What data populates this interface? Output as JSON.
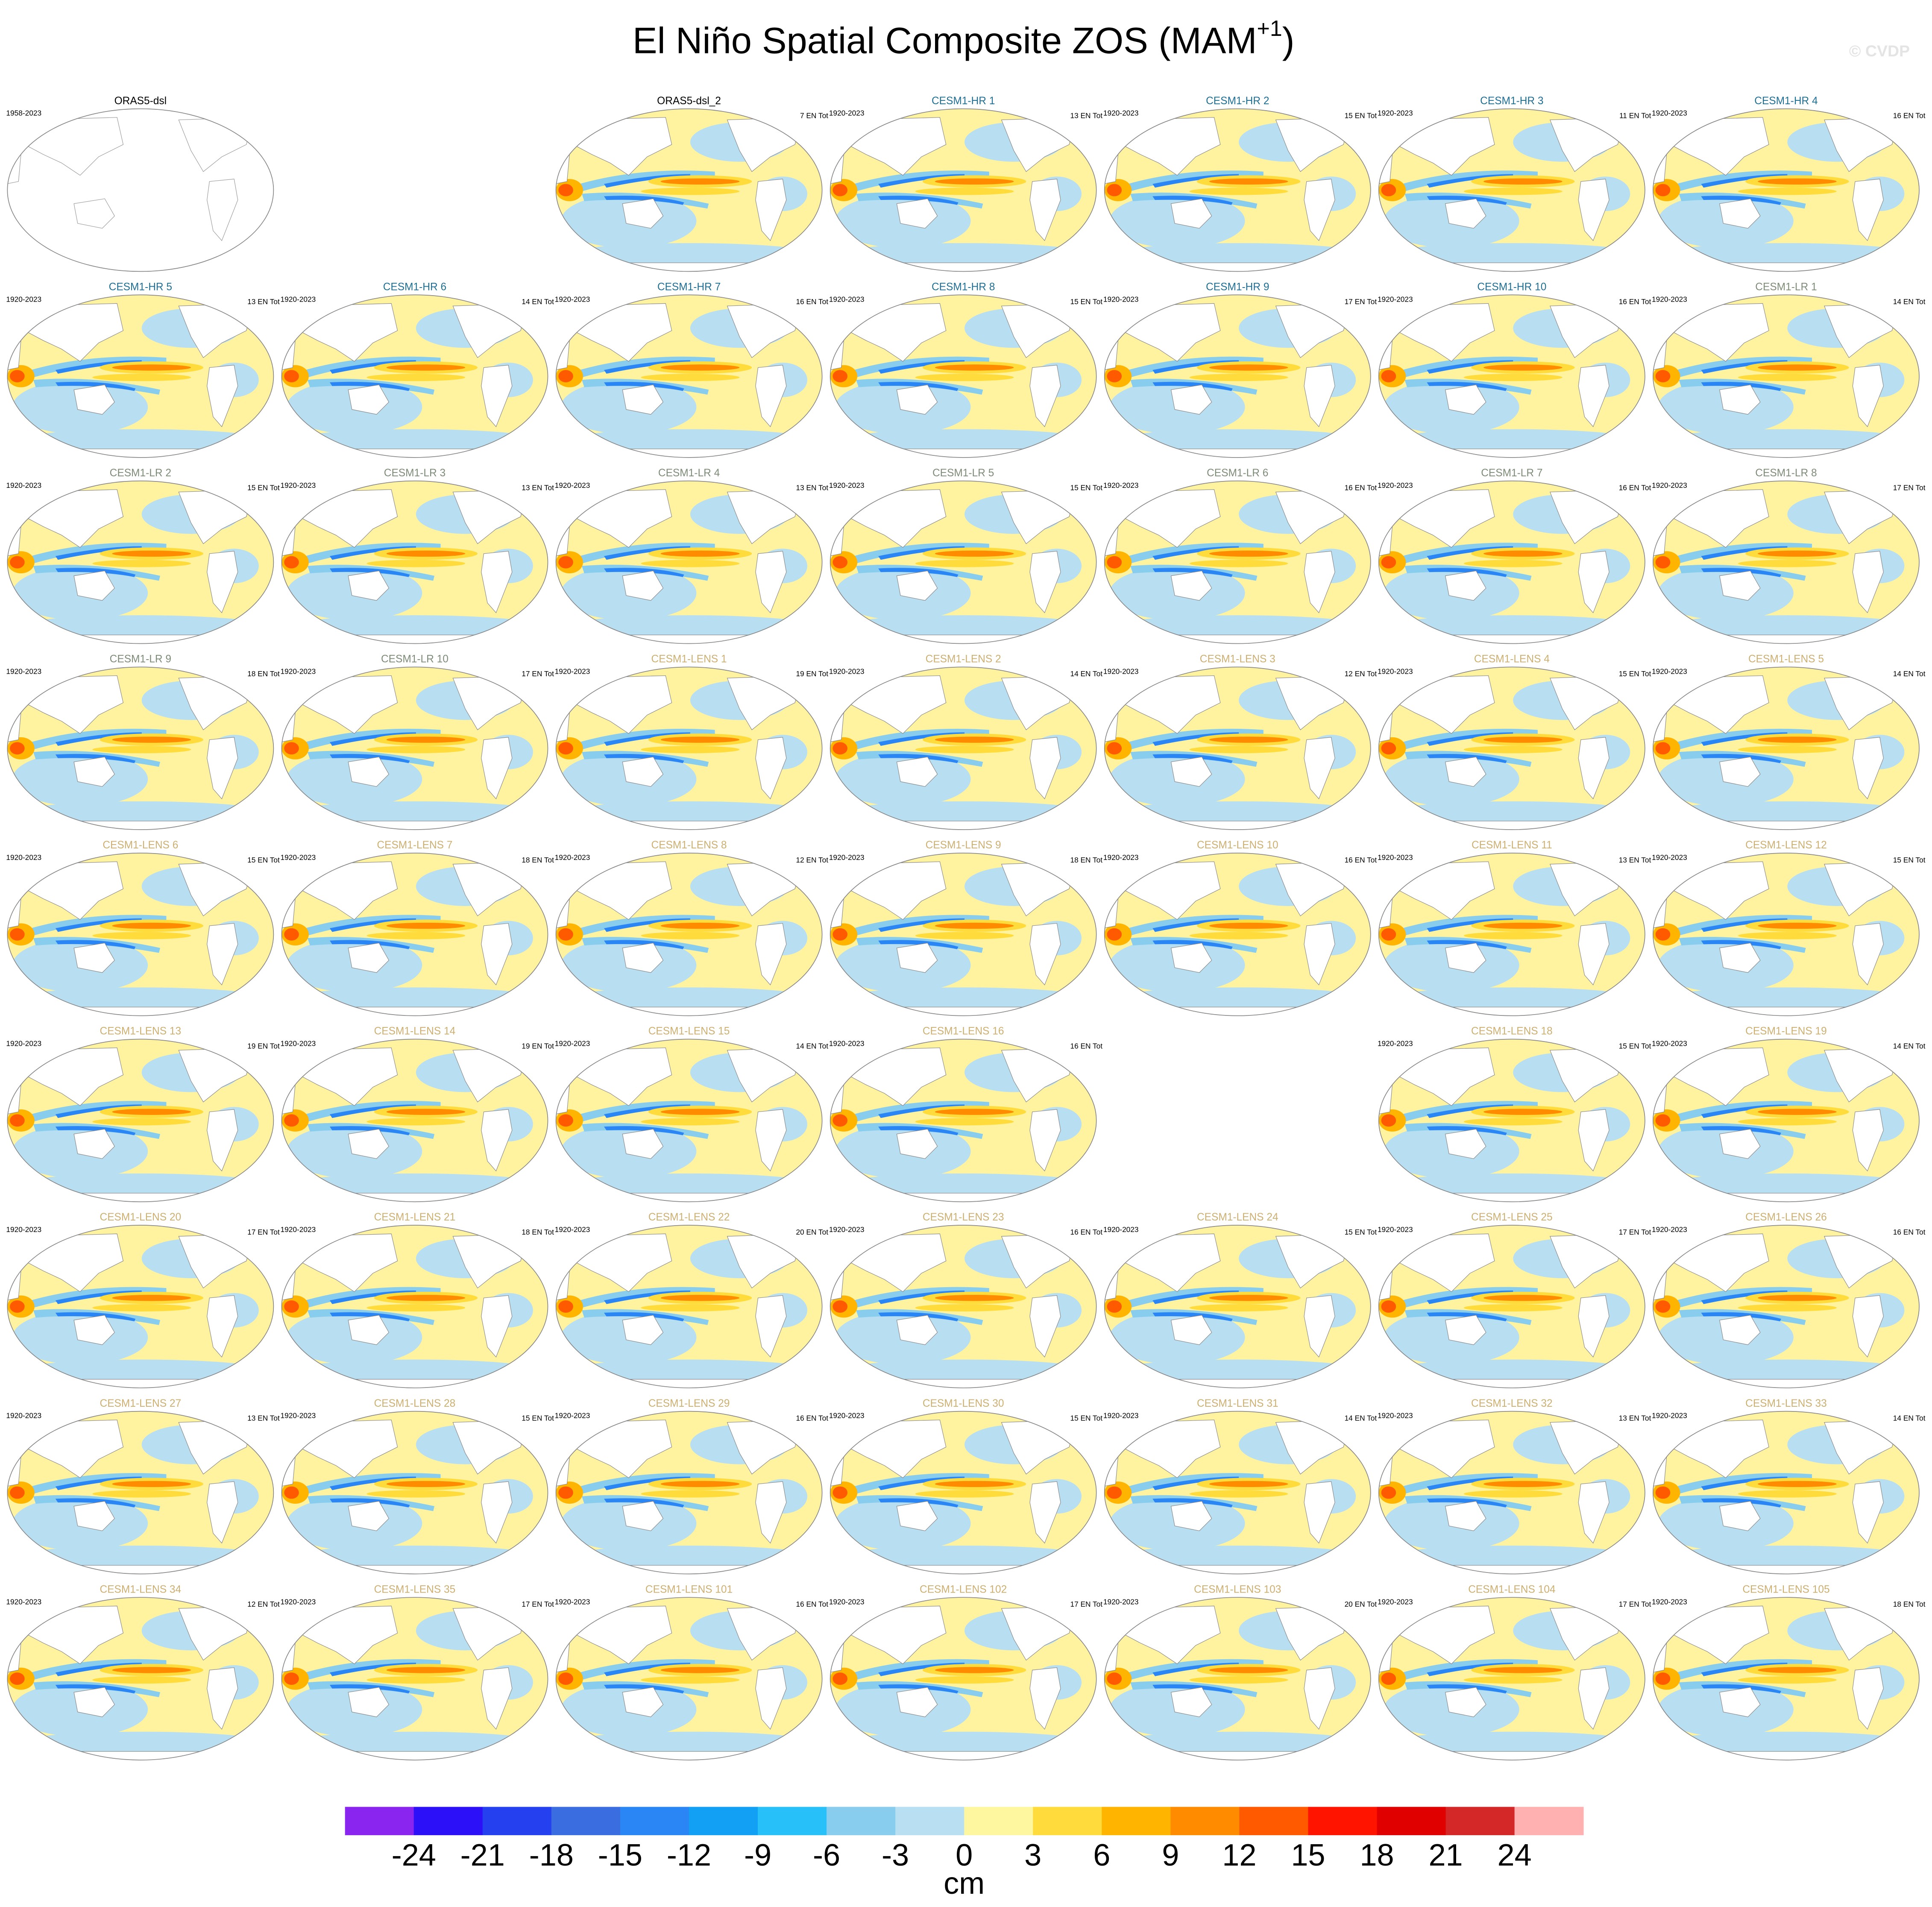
{
  "title": {
    "main": "El Niño Spatial Composite ZOS (MAM",
    "sup": "+1",
    "end": ")"
  },
  "watermark": "© CVDP",
  "group_colors": {
    "obs": "#000000",
    "hr": "#1f6e93",
    "lr": "#7d8b77",
    "lens": "#cdb071"
  },
  "rows": [
    [
      {
        "title": "ORAS5-dsl",
        "group": "obs",
        "period": "1958-2023",
        "filled": false
      },
      null,
      {
        "title": "ORAS5-dsl_2",
        "group": "obs",
        "count": "7 EN Tot",
        "filled": true
      },
      {
        "title": "CESM1-HR 1",
        "group": "hr",
        "period": "1920-2023",
        "count": "13 EN Tot",
        "filled": true
      },
      {
        "title": "CESM1-HR 2",
        "group": "hr",
        "period": "1920-2023",
        "count": "15 EN Tot",
        "filled": true
      },
      {
        "title": "CESM1-HR 3",
        "group": "hr",
        "period": "1920-2023",
        "count": "11 EN Tot",
        "filled": true
      },
      {
        "title": "CESM1-HR 4",
        "group": "hr",
        "period": "1920-2023",
        "count": "16 EN Tot",
        "filled": true
      }
    ],
    [
      {
        "title": "CESM1-HR 5",
        "group": "hr",
        "period": "1920-2023",
        "count": "13 EN Tot",
        "filled": true
      },
      {
        "title": "CESM1-HR 6",
        "group": "hr",
        "period": "1920-2023",
        "count": "14 EN Tot",
        "filled": true
      },
      {
        "title": "CESM1-HR 7",
        "group": "hr",
        "period": "1920-2023",
        "count": "16 EN Tot",
        "filled": true
      },
      {
        "title": "CESM1-HR 8",
        "group": "hr",
        "period": "1920-2023",
        "count": "15 EN Tot",
        "filled": true
      },
      {
        "title": "CESM1-HR 9",
        "group": "hr",
        "period": "1920-2023",
        "count": "17 EN Tot",
        "filled": true
      },
      {
        "title": "CESM1-HR 10",
        "group": "hr",
        "period": "1920-2023",
        "count": "16 EN Tot",
        "filled": true
      },
      {
        "title": "CESM1-LR 1",
        "group": "lr",
        "period": "1920-2023",
        "count": "14 EN Tot",
        "filled": true
      }
    ],
    [
      {
        "title": "CESM1-LR 2",
        "group": "lr",
        "period": "1920-2023",
        "count": "15 EN Tot",
        "filled": true
      },
      {
        "title": "CESM1-LR 3",
        "group": "lr",
        "period": "1920-2023",
        "count": "13 EN Tot",
        "filled": true
      },
      {
        "title": "CESM1-LR 4",
        "group": "lr",
        "period": "1920-2023",
        "count": "13 EN Tot",
        "filled": true
      },
      {
        "title": "CESM1-LR 5",
        "group": "lr",
        "period": "1920-2023",
        "count": "15 EN Tot",
        "filled": true
      },
      {
        "title": "CESM1-LR 6",
        "group": "lr",
        "period": "1920-2023",
        "count": "16 EN Tot",
        "filled": true
      },
      {
        "title": "CESM1-LR 7",
        "group": "lr",
        "period": "1920-2023",
        "count": "16 EN Tot",
        "filled": true
      },
      {
        "title": "CESM1-LR 8",
        "group": "lr",
        "period": "1920-2023",
        "count": "17 EN Tot",
        "filled": true
      }
    ],
    [
      {
        "title": "CESM1-LR 9",
        "group": "lr",
        "period": "1920-2023",
        "count": "18 EN Tot",
        "filled": true
      },
      {
        "title": "CESM1-LR 10",
        "group": "lr",
        "period": "1920-2023",
        "count": "17 EN Tot",
        "filled": true
      },
      {
        "title": "CESM1-LENS 1",
        "group": "lens",
        "period": "1920-2023",
        "count": "19 EN Tot",
        "filled": true
      },
      {
        "title": "CESM1-LENS 2",
        "group": "lens",
        "period": "1920-2023",
        "count": "14 EN Tot",
        "filled": true
      },
      {
        "title": "CESM1-LENS 3",
        "group": "lens",
        "period": "1920-2023",
        "count": "12 EN Tot",
        "filled": true
      },
      {
        "title": "CESM1-LENS 4",
        "group": "lens",
        "period": "1920-2023",
        "count": "15 EN Tot",
        "filled": true
      },
      {
        "title": "CESM1-LENS 5",
        "group": "lens",
        "period": "1920-2023",
        "count": "14 EN Tot",
        "filled": true
      }
    ],
    [
      {
        "title": "CESM1-LENS 6",
        "group": "lens",
        "period": "1920-2023",
        "count": "15 EN Tot",
        "filled": true
      },
      {
        "title": "CESM1-LENS 7",
        "group": "lens",
        "period": "1920-2023",
        "count": "18 EN Tot",
        "filled": true
      },
      {
        "title": "CESM1-LENS 8",
        "group": "lens",
        "period": "1920-2023",
        "count": "12 EN Tot",
        "filled": true
      },
      {
        "title": "CESM1-LENS 9",
        "group": "lens",
        "period": "1920-2023",
        "count": "18 EN Tot",
        "filled": true
      },
      {
        "title": "CESM1-LENS 10",
        "group": "lens",
        "period": "1920-2023",
        "count": "16 EN Tot",
        "filled": true
      },
      {
        "title": "CESM1-LENS 11",
        "group": "lens",
        "period": "1920-2023",
        "count": "13 EN Tot",
        "filled": true
      },
      {
        "title": "CESM1-LENS 12",
        "group": "lens",
        "period": "1920-2023",
        "count": "15 EN Tot",
        "filled": true
      }
    ],
    [
      {
        "title": "CESM1-LENS 13",
        "group": "lens",
        "period": "1920-2023",
        "count": "19 EN Tot",
        "filled": true
      },
      {
        "title": "CESM1-LENS 14",
        "group": "lens",
        "period": "1920-2023",
        "count": "19 EN Tot",
        "filled": true
      },
      {
        "title": "CESM1-LENS 15",
        "group": "lens",
        "period": "1920-2023",
        "count": "14 EN Tot",
        "filled": true
      },
      {
        "title": "CESM1-LENS 16",
        "group": "lens",
        "period": "1920-2023",
        "count": "16 EN Tot",
        "filled": true
      },
      null,
      {
        "title": "CESM1-LENS 18",
        "group": "lens",
        "period": "1920-2023",
        "count": "15 EN Tot",
        "filled": true
      },
      {
        "title": "CESM1-LENS 19",
        "group": "lens",
        "period": "1920-2023",
        "count": "14 EN Tot",
        "filled": true
      }
    ],
    [
      {
        "title": "CESM1-LENS 20",
        "group": "lens",
        "period": "1920-2023",
        "count": "17 EN Tot",
        "filled": true
      },
      {
        "title": "CESM1-LENS 21",
        "group": "lens",
        "period": "1920-2023",
        "count": "18 EN Tot",
        "filled": true
      },
      {
        "title": "CESM1-LENS 22",
        "group": "lens",
        "period": "1920-2023",
        "count": "20 EN Tot",
        "filled": true
      },
      {
        "title": "CESM1-LENS 23",
        "group": "lens",
        "period": "1920-2023",
        "count": "16 EN Tot",
        "filled": true
      },
      {
        "title": "CESM1-LENS 24",
        "group": "lens",
        "period": "1920-2023",
        "count": "15 EN Tot",
        "filled": true
      },
      {
        "title": "CESM1-LENS 25",
        "group": "lens",
        "period": "1920-2023",
        "count": "17 EN Tot",
        "filled": true
      },
      {
        "title": "CESM1-LENS 26",
        "group": "lens",
        "period": "1920-2023",
        "count": "16 EN Tot",
        "filled": true
      }
    ],
    [
      {
        "title": "CESM1-LENS 27",
        "group": "lens",
        "period": "1920-2023",
        "count": "13 EN Tot",
        "filled": true
      },
      {
        "title": "CESM1-LENS 28",
        "group": "lens",
        "period": "1920-2023",
        "count": "15 EN Tot",
        "filled": true
      },
      {
        "title": "CESM1-LENS 29",
        "group": "lens",
        "period": "1920-2023",
        "count": "16 EN Tot",
        "filled": true
      },
      {
        "title": "CESM1-LENS 30",
        "group": "lens",
        "period": "1920-2023",
        "count": "15 EN Tot",
        "filled": true
      },
      {
        "title": "CESM1-LENS 31",
        "group": "lens",
        "period": "1920-2023",
        "count": "14 EN Tot",
        "filled": true
      },
      {
        "title": "CESM1-LENS 32",
        "group": "lens",
        "period": "1920-2023",
        "count": "13 EN Tot",
        "filled": true
      },
      {
        "title": "CESM1-LENS 33",
        "group": "lens",
        "period": "1920-2023",
        "count": "14 EN Tot",
        "filled": true
      }
    ],
    [
      {
        "title": "CESM1-LENS 34",
        "group": "lens",
        "period": "1920-2023",
        "count": "12 EN Tot",
        "filled": true
      },
      {
        "title": "CESM1-LENS 35",
        "group": "lens",
        "period": "1920-2023",
        "count": "17 EN Tot",
        "filled": true
      },
      {
        "title": "CESM1-LENS 101",
        "group": "lens",
        "period": "1920-2023",
        "count": "16 EN Tot",
        "filled": true
      },
      {
        "title": "CESM1-LENS 102",
        "group": "lens",
        "period": "1920-2023",
        "count": "17 EN Tot",
        "filled": true
      },
      {
        "title": "CESM1-LENS 103",
        "group": "lens",
        "period": "1920-2023",
        "count": "20 EN Tot",
        "filled": true
      },
      {
        "title": "CESM1-LENS 104",
        "group": "lens",
        "period": "1920-2023",
        "count": "17 EN Tot",
        "filled": true
      },
      {
        "title": "CESM1-LENS 105",
        "group": "lens",
        "period": "1920-2023",
        "count": "18 EN Tot",
        "filled": true
      }
    ]
  ],
  "colorbar": {
    "colors": [
      "#8a25f0",
      "#2b10f8",
      "#2540ef",
      "#3a6ee0",
      "#2a85f5",
      "#12a0f5",
      "#27c0f8",
      "#88ccee",
      "#b8e0f2",
      "#fff7a0",
      "#ffdc3c",
      "#ffb400",
      "#ff8c00",
      "#ff5a00",
      "#ff1400",
      "#e00000",
      "#d42828",
      "#ffb0b0"
    ],
    "ticks": [
      -24,
      -21,
      -18,
      -15,
      -12,
      -9,
      -6,
      -3,
      0,
      3,
      6,
      9,
      12,
      15,
      18,
      21,
      24
    ],
    "label": "cm"
  }
}
